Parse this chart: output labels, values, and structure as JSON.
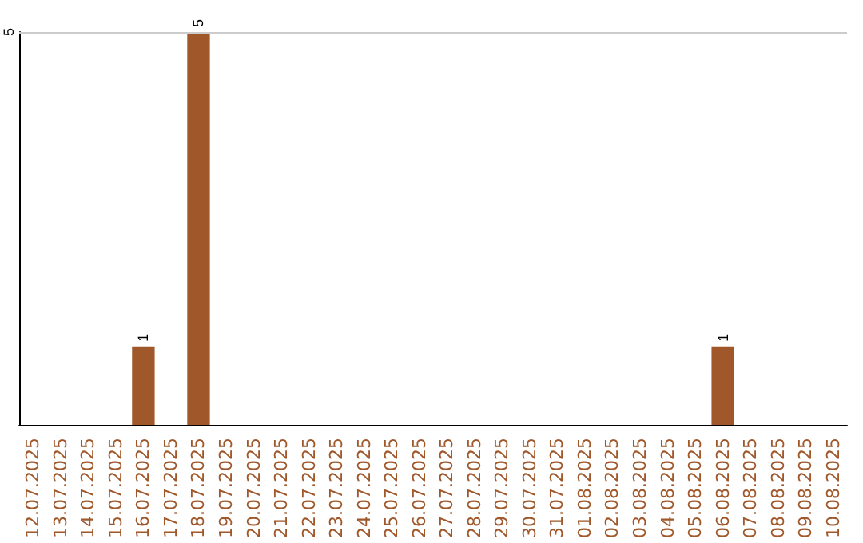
{
  "chart_data": {
    "type": "bar",
    "categories": [
      "12.07.2025",
      "13.07.2025",
      "14.07.2025",
      "15.07.2025",
      "16.07.2025",
      "17.07.2025",
      "18.07.2025",
      "19.07.2025",
      "20.07.2025",
      "21.07.2025",
      "22.07.2025",
      "23.07.2025",
      "24.07.2025",
      "25.07.2025",
      "26.07.2025",
      "27.07.2025",
      "28.07.2025",
      "29.07.2025",
      "30.07.2025",
      "31.07.2025",
      "01.08.2025",
      "02.08.2025",
      "03.08.2025",
      "04.08.2025",
      "05.08.2025",
      "06.08.2025",
      "07.08.2025",
      "08.08.2025",
      "09.08.2025",
      "10.08.2025"
    ],
    "values": [
      0,
      0,
      0,
      0,
      1,
      0,
      5,
      0,
      0,
      0,
      0,
      0,
      0,
      0,
      0,
      0,
      0,
      0,
      0,
      0,
      0,
      0,
      0,
      0,
      0,
      1,
      0,
      0,
      0,
      0
    ],
    "value_labels": [
      null,
      null,
      null,
      null,
      "1",
      null,
      "5",
      null,
      null,
      null,
      null,
      null,
      null,
      null,
      null,
      null,
      null,
      null,
      null,
      null,
      null,
      null,
      null,
      null,
      null,
      "1",
      null,
      null,
      null,
      null
    ],
    "color": "#a0572a",
    "ylim": [
      0,
      5
    ],
    "yticks": [
      5
    ],
    "ref_lines": [
      {
        "axis": "y",
        "value": 5,
        "color": "#cccccc"
      }
    ]
  }
}
